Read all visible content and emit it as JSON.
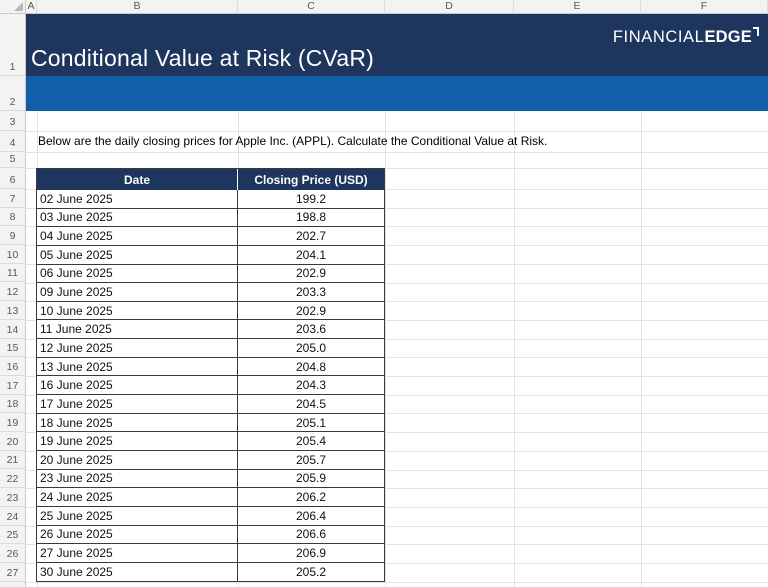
{
  "banner": {
    "title": "Conditional Value at Risk (CVaR)",
    "logo": {
      "thin": "FINANCIAL",
      "bold": "EDGE"
    }
  },
  "description": "Below are the daily closing prices for Apple Inc. (APPL). Calculate the Conditional Value at Risk.",
  "sheet": {
    "column_headers": [
      "A",
      "B",
      "C",
      "D",
      "E",
      "F"
    ],
    "row_headers": [
      "1",
      "2",
      "3",
      "4",
      "5",
      "6",
      "7",
      "8",
      "9",
      "10",
      "11",
      "12",
      "13",
      "14",
      "15",
      "16",
      "17",
      "18",
      "19",
      "20",
      "21",
      "22",
      "23",
      "24",
      "25",
      "26",
      "27"
    ]
  },
  "table": {
    "columns": [
      "Date",
      "Closing Price (USD)"
    ],
    "rows": [
      [
        "02 June 2025",
        "199.2"
      ],
      [
        "03 June 2025",
        "198.8"
      ],
      [
        "04 June 2025",
        "202.7"
      ],
      [
        "05 June 2025",
        "204.1"
      ],
      [
        "06 June 2025",
        "202.9"
      ],
      [
        "09 June 2025",
        "203.3"
      ],
      [
        "10 June 2025",
        "202.9"
      ],
      [
        "11 June 2025",
        "203.6"
      ],
      [
        "12 June 2025",
        "205.0"
      ],
      [
        "13 June 2025",
        "204.8"
      ],
      [
        "16 June 2025",
        "204.3"
      ],
      [
        "17 June 2025",
        "204.5"
      ],
      [
        "18 June 2025",
        "205.1"
      ],
      [
        "19 June 2025",
        "205.4"
      ],
      [
        "20 June 2025",
        "205.7"
      ],
      [
        "23 June 2025",
        "205.9"
      ],
      [
        "24 June 2025",
        "206.2"
      ],
      [
        "25 June 2025",
        "206.4"
      ],
      [
        "26 June 2025",
        "206.6"
      ],
      [
        "27 June 2025",
        "206.9"
      ],
      [
        "30 June 2025",
        "205.2"
      ]
    ]
  },
  "colors": {
    "navy": "#1E355E",
    "blue": "#115FA6",
    "gridline": "#E3E3E3",
    "table_border": "#3A3A3A",
    "header_bg": "#F3F3F3",
    "header_text": "#585858"
  }
}
